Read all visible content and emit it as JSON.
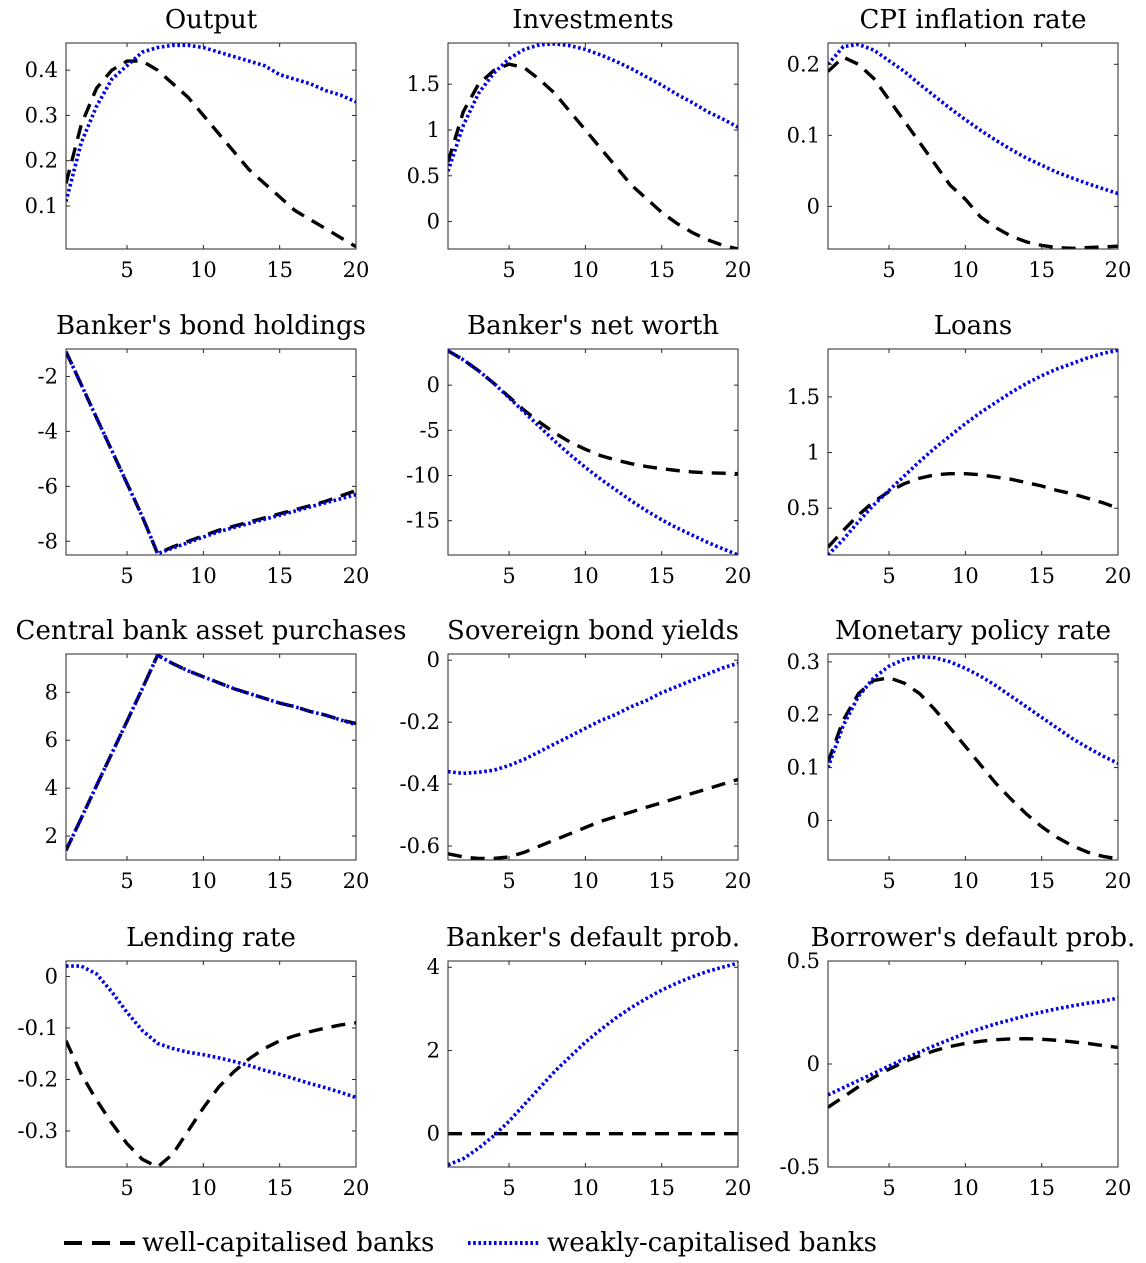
{
  "chart_data": [
    {
      "type": "line",
      "title": "Output",
      "xlim": [
        1,
        20
      ],
      "ylim": [
        0.005,
        0.46
      ],
      "xticks": [
        5,
        10,
        15,
        20
      ],
      "yticks": [
        0.1,
        0.2,
        0.3,
        0.4
      ],
      "ytick_labels": [
        "0.1",
        "0.2",
        "0.3",
        "0.4"
      ],
      "x": [
        1,
        2,
        3,
        4,
        5,
        6,
        7,
        8,
        9,
        10,
        11,
        12,
        13,
        14,
        15,
        16,
        17,
        18,
        19,
        20
      ],
      "series": [
        {
          "name": "well-capitalised banks",
          "values": [
            0.15,
            0.28,
            0.36,
            0.4,
            0.42,
            0.42,
            0.4,
            0.37,
            0.34,
            0.3,
            0.26,
            0.22,
            0.18,
            0.15,
            0.12,
            0.09,
            0.07,
            0.05,
            0.03,
            0.01
          ]
        },
        {
          "name": "weakly-capitalised banks",
          "values": [
            0.11,
            0.24,
            0.32,
            0.38,
            0.41,
            0.44,
            0.45,
            0.455,
            0.455,
            0.45,
            0.44,
            0.43,
            0.42,
            0.41,
            0.39,
            0.38,
            0.37,
            0.355,
            0.345,
            0.33
          ]
        }
      ]
    },
    {
      "type": "line",
      "title": "Investments",
      "xlim": [
        1,
        20
      ],
      "ylim": [
        -0.3,
        1.95
      ],
      "xticks": [
        5,
        10,
        15,
        20
      ],
      "yticks": [
        0,
        0.5,
        1,
        1.5
      ],
      "ytick_labels": [
        "0",
        "0.5",
        "1",
        "1.5"
      ],
      "x": [
        1,
        2,
        3,
        4,
        5,
        6,
        7,
        8,
        9,
        10,
        11,
        12,
        13,
        14,
        15,
        16,
        17,
        18,
        19,
        20
      ],
      "series": [
        {
          "name": "well-capitalised banks",
          "values": [
            0.65,
            1.2,
            1.5,
            1.65,
            1.72,
            1.68,
            1.55,
            1.4,
            1.2,
            1.0,
            0.8,
            0.6,
            0.4,
            0.25,
            0.1,
            -0.02,
            -0.12,
            -0.2,
            -0.26,
            -0.3
          ]
        },
        {
          "name": "weakly-capitalised banks",
          "values": [
            0.55,
            1.05,
            1.4,
            1.62,
            1.78,
            1.88,
            1.93,
            1.94,
            1.92,
            1.88,
            1.82,
            1.75,
            1.67,
            1.58,
            1.49,
            1.39,
            1.3,
            1.2,
            1.12,
            1.03
          ]
        }
      ]
    },
    {
      "type": "line",
      "title": "CPI inflation rate",
      "xlim": [
        1,
        20
      ],
      "ylim": [
        -0.06,
        0.23
      ],
      "xticks": [
        5,
        10,
        15,
        20
      ],
      "yticks": [
        0,
        0.1,
        0.2
      ],
      "ytick_labels": [
        "0",
        "0.1",
        "0.2"
      ],
      "x": [
        1,
        2,
        3,
        4,
        5,
        6,
        7,
        8,
        9,
        10,
        11,
        12,
        13,
        14,
        15,
        16,
        17,
        18,
        19,
        20
      ],
      "series": [
        {
          "name": "well-capitalised banks",
          "values": [
            0.19,
            0.21,
            0.2,
            0.18,
            0.15,
            0.12,
            0.09,
            0.06,
            0.03,
            0.01,
            -0.015,
            -0.03,
            -0.042,
            -0.05,
            -0.055,
            -0.058,
            -0.059,
            -0.058,
            -0.057,
            -0.056
          ]
        },
        {
          "name": "weakly-capitalised banks",
          "values": [
            0.2,
            0.225,
            0.228,
            0.22,
            0.205,
            0.19,
            0.172,
            0.155,
            0.138,
            0.122,
            0.107,
            0.093,
            0.08,
            0.068,
            0.058,
            0.048,
            0.04,
            0.032,
            0.025,
            0.018
          ]
        }
      ]
    },
    {
      "type": "line",
      "title": "Banker's bond holdings",
      "xlim": [
        1,
        20
      ],
      "ylim": [
        -8.5,
        -1.0
      ],
      "xticks": [
        5,
        10,
        15,
        20
      ],
      "yticks": [
        -8,
        -6,
        -4,
        -2
      ],
      "ytick_labels": [
        "-8",
        "-6",
        "-4",
        "-2"
      ],
      "x": [
        1,
        2,
        3,
        4,
        5,
        6,
        7,
        8,
        9,
        10,
        11,
        12,
        13,
        14,
        15,
        16,
        17,
        18,
        19,
        20
      ],
      "series": [
        {
          "name": "well-capitalised banks",
          "values": [
            -1.1,
            -2.3,
            -3.5,
            -4.7,
            -5.9,
            -7.1,
            -8.45,
            -8.2,
            -8.0,
            -7.8,
            -7.6,
            -7.45,
            -7.3,
            -7.15,
            -7.0,
            -6.85,
            -6.7,
            -6.55,
            -6.35,
            -6.15
          ]
        },
        {
          "name": "weakly-capitalised banks",
          "values": [
            -1.1,
            -2.3,
            -3.5,
            -4.7,
            -5.9,
            -7.1,
            -8.45,
            -8.25,
            -8.05,
            -7.85,
            -7.65,
            -7.5,
            -7.35,
            -7.2,
            -7.05,
            -6.9,
            -6.75,
            -6.6,
            -6.45,
            -6.3
          ]
        }
      ]
    },
    {
      "type": "line",
      "title": "Banker's net worth",
      "xlim": [
        1,
        20
      ],
      "ylim": [
        -18.8,
        4.0
      ],
      "xticks": [
        5,
        10,
        15,
        20
      ],
      "yticks": [
        -15,
        -10,
        -5,
        0
      ],
      "ytick_labels": [
        "-15",
        "-10",
        "-5",
        "0"
      ],
      "x": [
        1,
        2,
        3,
        4,
        5,
        6,
        7,
        8,
        9,
        10,
        11,
        12,
        13,
        14,
        15,
        16,
        17,
        18,
        19,
        20
      ],
      "series": [
        {
          "name": "well-capitalised banks",
          "values": [
            3.8,
            2.8,
            1.6,
            0.2,
            -1.3,
            -2.8,
            -4.1,
            -5.3,
            -6.3,
            -7.1,
            -7.8,
            -8.3,
            -8.7,
            -9.0,
            -9.25,
            -9.45,
            -9.6,
            -9.7,
            -9.75,
            -9.8
          ]
        },
        {
          "name": "weakly-capitalised banks",
          "values": [
            3.8,
            2.8,
            1.6,
            0.2,
            -1.4,
            -3.0,
            -4.6,
            -6.2,
            -7.7,
            -9.1,
            -10.4,
            -11.6,
            -12.8,
            -13.9,
            -14.9,
            -15.8,
            -16.6,
            -17.4,
            -18.1,
            -18.8
          ]
        }
      ]
    },
    {
      "type": "line",
      "title": "Loans",
      "xlim": [
        1,
        20
      ],
      "ylim": [
        0.08,
        1.93
      ],
      "xticks": [
        5,
        10,
        15,
        20
      ],
      "yticks": [
        0.5,
        1,
        1.5
      ],
      "ytick_labels": [
        "0.5",
        "1",
        "1.5"
      ],
      "x": [
        1,
        2,
        3,
        4,
        5,
        6,
        7,
        8,
        9,
        10,
        11,
        12,
        13,
        14,
        15,
        16,
        17,
        18,
        19,
        20
      ],
      "series": [
        {
          "name": "well-capitalised banks",
          "values": [
            0.15,
            0.3,
            0.44,
            0.56,
            0.65,
            0.72,
            0.77,
            0.8,
            0.81,
            0.81,
            0.8,
            0.78,
            0.76,
            0.73,
            0.7,
            0.66,
            0.63,
            0.59,
            0.55,
            0.5
          ]
        },
        {
          "name": "weakly-capitalised banks",
          "values": [
            0.08,
            0.22,
            0.38,
            0.53,
            0.66,
            0.79,
            0.92,
            1.04,
            1.15,
            1.26,
            1.36,
            1.45,
            1.54,
            1.62,
            1.69,
            1.75,
            1.8,
            1.85,
            1.89,
            1.92
          ]
        }
      ]
    },
    {
      "type": "line",
      "title": "Central bank asset purchases",
      "xlim": [
        1,
        20
      ],
      "ylim": [
        1.0,
        9.6
      ],
      "xticks": [
        5,
        10,
        15,
        20
      ],
      "yticks": [
        2,
        4,
        6,
        8
      ],
      "ytick_labels": [
        "2",
        "4",
        "6",
        "8"
      ],
      "x": [
        1,
        2,
        3,
        4,
        5,
        6,
        7,
        8,
        9,
        10,
        11,
        12,
        13,
        14,
        15,
        16,
        17,
        18,
        19,
        20
      ],
      "series": [
        {
          "name": "well-capitalised banks",
          "values": [
            1.4,
            2.75,
            4.1,
            5.45,
            6.8,
            8.15,
            9.55,
            9.2,
            8.9,
            8.65,
            8.4,
            8.15,
            7.95,
            7.75,
            7.55,
            7.4,
            7.2,
            7.05,
            6.85,
            6.7
          ]
        },
        {
          "name": "weakly-capitalised banks",
          "values": [
            1.4,
            2.75,
            4.1,
            5.45,
            6.8,
            8.15,
            9.55,
            9.2,
            8.9,
            8.65,
            8.4,
            8.15,
            7.95,
            7.75,
            7.55,
            7.4,
            7.2,
            7.05,
            6.85,
            6.65
          ]
        }
      ]
    },
    {
      "type": "line",
      "title": "Sovereign bond yields",
      "xlim": [
        1,
        20
      ],
      "ylim": [
        -0.645,
        0.02
      ],
      "xticks": [
        5,
        10,
        15,
        20
      ],
      "yticks": [
        -0.6,
        -0.4,
        -0.2,
        0
      ],
      "ytick_labels": [
        "-0.6",
        "-0.4",
        "-0.2",
        "0"
      ],
      "x": [
        1,
        2,
        3,
        4,
        5,
        6,
        7,
        8,
        9,
        10,
        11,
        12,
        13,
        14,
        15,
        16,
        17,
        18,
        19,
        20
      ],
      "series": [
        {
          "name": "well-capitalised banks",
          "values": [
            -0.625,
            -0.635,
            -0.64,
            -0.64,
            -0.635,
            -0.62,
            -0.6,
            -0.58,
            -0.56,
            -0.54,
            -0.52,
            -0.505,
            -0.49,
            -0.475,
            -0.46,
            -0.445,
            -0.43,
            -0.415,
            -0.4,
            -0.385
          ]
        },
        {
          "name": "weakly-capitalised banks",
          "values": [
            -0.36,
            -0.365,
            -0.362,
            -0.355,
            -0.34,
            -0.32,
            -0.295,
            -0.27,
            -0.245,
            -0.22,
            -0.195,
            -0.175,
            -0.15,
            -0.13,
            -0.105,
            -0.085,
            -0.065,
            -0.045,
            -0.025,
            -0.01
          ]
        }
      ]
    },
    {
      "type": "line",
      "title": "Monetary policy rate",
      "xlim": [
        1,
        20
      ],
      "ylim": [
        -0.075,
        0.315
      ],
      "xticks": [
        5,
        10,
        15,
        20
      ],
      "yticks": [
        0,
        0.1,
        0.2,
        0.3
      ],
      "ytick_labels": [
        "0",
        "0.1",
        "0.2",
        "0.3"
      ],
      "x": [
        1,
        2,
        3,
        4,
        5,
        6,
        7,
        8,
        9,
        10,
        11,
        12,
        13,
        14,
        15,
        16,
        17,
        18,
        19,
        20
      ],
      "series": [
        {
          "name": "well-capitalised banks",
          "values": [
            0.11,
            0.19,
            0.24,
            0.265,
            0.27,
            0.26,
            0.24,
            0.21,
            0.175,
            0.14,
            0.105,
            0.07,
            0.04,
            0.012,
            -0.012,
            -0.032,
            -0.048,
            -0.06,
            -0.068,
            -0.073
          ]
        },
        {
          "name": "weakly-capitalised banks",
          "values": [
            0.1,
            0.18,
            0.235,
            0.27,
            0.292,
            0.305,
            0.31,
            0.308,
            0.3,
            0.288,
            0.273,
            0.255,
            0.235,
            0.215,
            0.195,
            0.175,
            0.155,
            0.138,
            0.122,
            0.108
          ]
        }
      ]
    },
    {
      "type": "line",
      "title": "Lending rate",
      "xlim": [
        1,
        20
      ],
      "ylim": [
        -0.37,
        0.03
      ],
      "xticks": [
        5,
        10,
        15,
        20
      ],
      "yticks": [
        -0.3,
        -0.2,
        -0.1,
        0
      ],
      "ytick_labels": [
        "-0.3",
        "-0.2",
        "-0.1",
        "0"
      ],
      "x": [
        1,
        2,
        3,
        4,
        5,
        6,
        7,
        8,
        9,
        10,
        11,
        12,
        13,
        14,
        15,
        16,
        17,
        18,
        19,
        20
      ],
      "series": [
        {
          "name": "well-capitalised banks",
          "values": [
            -0.125,
            -0.19,
            -0.24,
            -0.285,
            -0.325,
            -0.355,
            -0.37,
            -0.345,
            -0.3,
            -0.255,
            -0.215,
            -0.185,
            -0.16,
            -0.14,
            -0.125,
            -0.115,
            -0.107,
            -0.1,
            -0.094,
            -0.09
          ]
        },
        {
          "name": "weakly-capitalised banks",
          "values": [
            0.02,
            0.02,
            0.005,
            -0.03,
            -0.07,
            -0.105,
            -0.13,
            -0.14,
            -0.147,
            -0.152,
            -0.158,
            -0.165,
            -0.173,
            -0.182,
            -0.19,
            -0.199,
            -0.208,
            -0.216,
            -0.225,
            -0.235
          ]
        }
      ]
    },
    {
      "type": "line",
      "title": "Banker's default prob.",
      "xlim": [
        1,
        20
      ],
      "ylim": [
        -0.8,
        4.15
      ],
      "xticks": [
        5,
        10,
        15,
        20
      ],
      "yticks": [
        0,
        2,
        4
      ],
      "ytick_labels": [
        "0",
        "2",
        "4"
      ],
      "x": [
        1,
        2,
        3,
        4,
        5,
        6,
        7,
        8,
        9,
        10,
        11,
        12,
        13,
        14,
        15,
        16,
        17,
        18,
        19,
        20
      ],
      "series": [
        {
          "name": "well-capitalised banks",
          "values": [
            0,
            0,
            0,
            0,
            0,
            0,
            0,
            0,
            0,
            0,
            0,
            0,
            0,
            0,
            0,
            0,
            0,
            0,
            0,
            0
          ]
        },
        {
          "name": "weakly-capitalised banks",
          "values": [
            -0.75,
            -0.6,
            -0.35,
            -0.05,
            0.3,
            0.7,
            1.1,
            1.5,
            1.85,
            2.2,
            2.5,
            2.78,
            3.03,
            3.25,
            3.45,
            3.62,
            3.77,
            3.9,
            4.0,
            4.1
          ]
        }
      ]
    },
    {
      "type": "line",
      "title": "Borrower's default prob.",
      "xlim": [
        1,
        20
      ],
      "ylim": [
        -0.5,
        0.5
      ],
      "xticks": [
        5,
        10,
        15,
        20
      ],
      "yticks": [
        -0.5,
        0,
        0.5
      ],
      "ytick_labels": [
        "-0.5",
        "0",
        "0.5"
      ],
      "x": [
        1,
        2,
        3,
        4,
        5,
        6,
        7,
        8,
        9,
        10,
        11,
        12,
        13,
        14,
        15,
        16,
        17,
        18,
        19,
        20
      ],
      "series": [
        {
          "name": "well-capitalised banks",
          "values": [
            -0.21,
            -0.16,
            -0.11,
            -0.065,
            -0.025,
            0.01,
            0.04,
            0.065,
            0.085,
            0.1,
            0.11,
            0.118,
            0.122,
            0.123,
            0.12,
            0.115,
            0.108,
            0.1,
            0.09,
            0.08
          ]
        },
        {
          "name": "weakly-capitalised banks",
          "values": [
            -0.15,
            -0.115,
            -0.08,
            -0.045,
            -0.01,
            0.025,
            0.058,
            0.09,
            0.12,
            0.148,
            0.172,
            0.195,
            0.215,
            0.235,
            0.252,
            0.268,
            0.282,
            0.295,
            0.305,
            0.32
          ]
        }
      ]
    }
  ],
  "legend": {
    "items": [
      {
        "label": "well-capitalised banks",
        "color": "#000000",
        "style": "dashed"
      },
      {
        "label": "weakly-capitalised banks",
        "color": "#0000e6",
        "style": "dotted"
      }
    ]
  },
  "colors": {
    "well": "#000000",
    "weak": "#0000e6"
  }
}
